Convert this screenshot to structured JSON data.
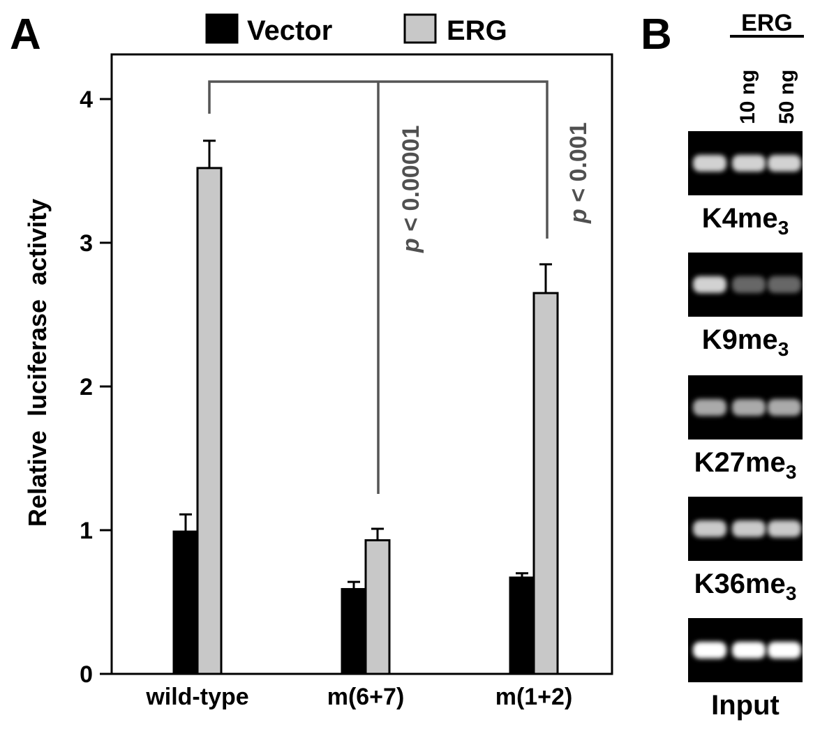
{
  "panels": {
    "a": {
      "letter": "A",
      "legend": [
        {
          "label": "Vector",
          "color": "#000000"
        },
        {
          "label": "ERG",
          "color": "#c8c8c8"
        }
      ],
      "significance": [
        {
          "text": "p < 0.00001",
          "italic_part": "p",
          "rest": " < 0.00001",
          "from": "wild-type",
          "to": "m(6+7)"
        },
        {
          "text": "p < 0.001",
          "italic_part": "p",
          "rest": " < 0.001",
          "from": "wild-type",
          "to": "m(1+2)"
        }
      ]
    },
    "b": {
      "letter": "B",
      "header": "ERG",
      "lanes": [
        "10 ng",
        "50 ng"
      ],
      "blots": [
        {
          "label": "K4me",
          "sub": "3",
          "bands": [
            0.85,
            0.85,
            0.85
          ]
        },
        {
          "label": "K9me",
          "sub": "3",
          "bands": [
            0.85,
            0.4,
            0.4
          ]
        },
        {
          "label": "K27me",
          "sub": "3",
          "bands": [
            0.7,
            0.7,
            0.7
          ]
        },
        {
          "label": "K36me",
          "sub": "3",
          "bands": [
            0.82,
            0.82,
            0.82
          ]
        },
        {
          "label": "Input",
          "sub": "",
          "bands": [
            1.0,
            1.0,
            1.0
          ]
        }
      ]
    }
  },
  "chart_data": {
    "type": "bar",
    "categories": [
      "wild-type",
      "m(6+7)",
      "m(1+2)"
    ],
    "series": [
      {
        "name": "Vector",
        "values": [
          0.99,
          0.59,
          0.67
        ],
        "errors": [
          0.12,
          0.05,
          0.03
        ],
        "color": "#000000"
      },
      {
        "name": "ERG",
        "values": [
          3.52,
          0.93,
          2.65
        ],
        "errors": [
          0.19,
          0.08,
          0.2
        ],
        "color": "#c8c8c8"
      }
    ],
    "xlabel": "",
    "ylabel": "Relative luciferase activity",
    "ylim": [
      0,
      4.3
    ],
    "yticks": [
      0,
      1,
      2,
      3,
      4
    ],
    "grid": false,
    "legend": "top"
  }
}
